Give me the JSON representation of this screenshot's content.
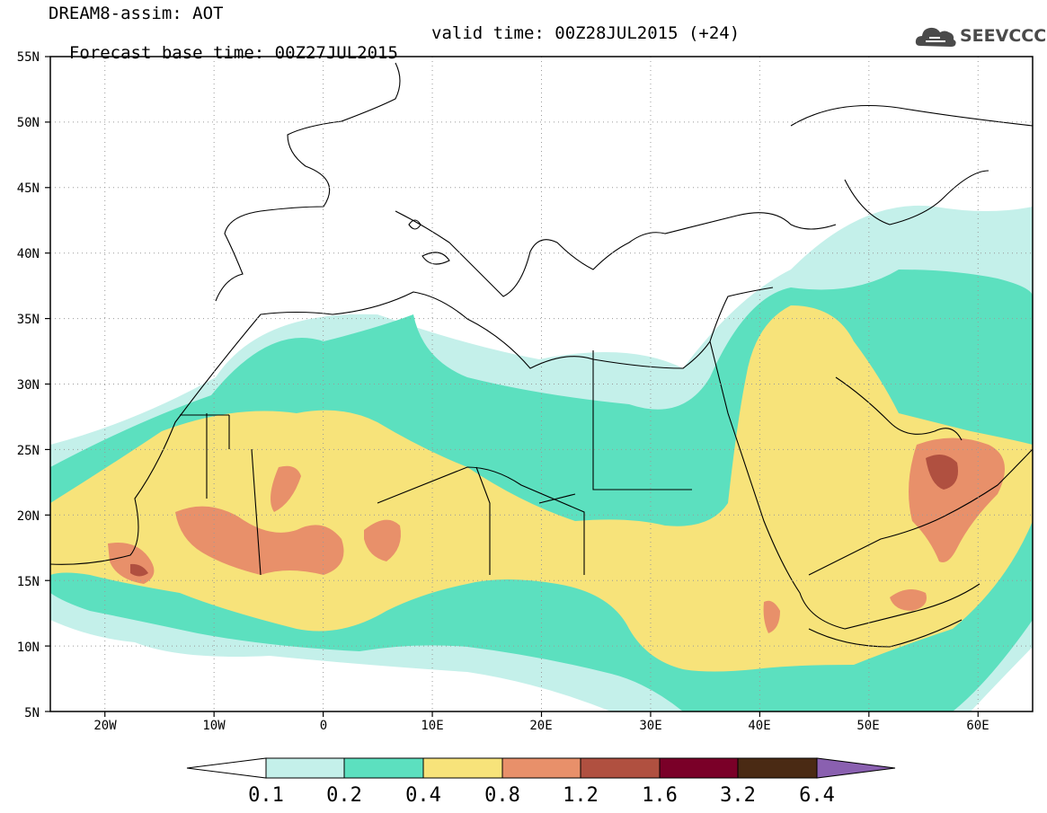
{
  "header": {
    "title": "DREAM8-assim: AOT",
    "base_time": "Forecast base time: 00Z27JUL2015",
    "valid_time": "valid time: 00Z28JUL2015 (+24)"
  },
  "logo": {
    "text": "SEEVCCC",
    "icon": "cloud-icon",
    "color": "#4a4a4a"
  },
  "map": {
    "lon_range": [
      -25,
      65
    ],
    "lat_range": [
      5,
      55
    ],
    "lat_labels": [
      "55N",
      "50N",
      "45N",
      "40N",
      "35N",
      "30N",
      "25N",
      "20N",
      "15N",
      "10N",
      "5N"
    ],
    "lon_labels": [
      "20W",
      "10W",
      "0",
      "10E",
      "20E",
      "30E",
      "40E",
      "50E",
      "60E"
    ],
    "grid": "dotted"
  },
  "colorbar": {
    "labels": [
      "0.1",
      "0.2",
      "0.4",
      "0.8",
      "1.2",
      "1.6",
      "3.2",
      "6.4"
    ],
    "colors": [
      "#ffffff",
      "#c4f0ea",
      "#5ce0bf",
      "#f7e37a",
      "#e8906a",
      "#b05040",
      "#7a0028",
      "#4a2a14",
      "#8a60b0"
    ]
  }
}
